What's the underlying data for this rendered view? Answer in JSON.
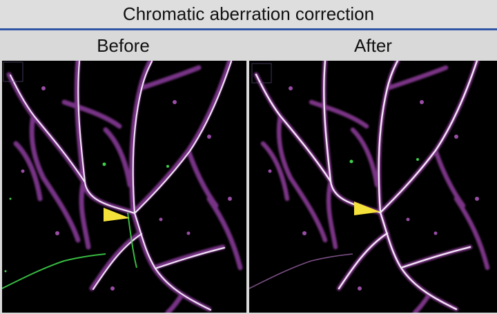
{
  "figure": {
    "title": "Chromatic aberration correction",
    "panels": [
      {
        "label": "Before"
      },
      {
        "label": "After"
      }
    ],
    "colors": {
      "title_rule": "#2f55a4",
      "background": "#000000",
      "dendrite_magenta": "#b04bc0",
      "dendrite_core": "#f1e6f3",
      "green_channel": "#3fd14a",
      "arrowhead": "#f4e13a"
    },
    "icons": [
      "arrowhead-marker"
    ]
  }
}
